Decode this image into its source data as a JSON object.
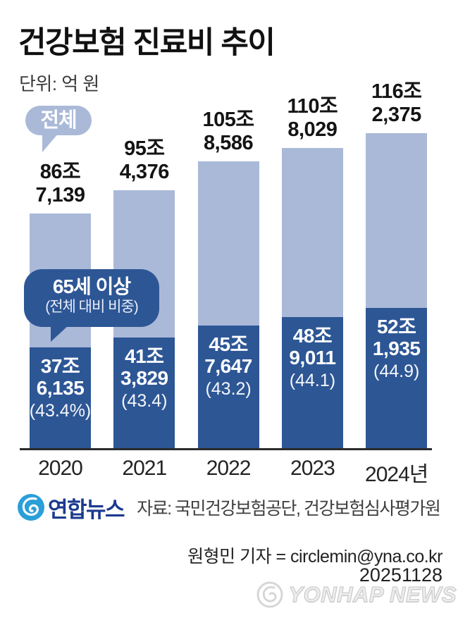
{
  "header": {
    "title": "건강보험 진료비 추이",
    "unit_label": "단위: 억 원"
  },
  "legend": {
    "total_badge": "전체",
    "senior_badge_line1": "65세 이상",
    "senior_badge_line2": "(전체 대비 비중)"
  },
  "chart_data": {
    "type": "bar",
    "stacked_overlay": true,
    "title": "건강보험 진료비 추이",
    "unit": "억 원",
    "categories": [
      "2020",
      "2021",
      "2022",
      "2023",
      "2024년"
    ],
    "series": [
      {
        "name": "전체",
        "values": [
          867139,
          954376,
          1058586,
          1108029,
          1162375
        ]
      },
      {
        "name": "65세 이상",
        "values": [
          376135,
          413829,
          457647,
          489011,
          521935
        ]
      }
    ],
    "senior_share_pct": [
      43.4,
      43.4,
      43.2,
      44.1,
      44.9
    ],
    "colors": {
      "total": "#aab9d8",
      "senior": "#2d5695"
    },
    "bars": [
      {
        "year": "2020",
        "total_value": 867139,
        "senior_value": 376135,
        "total_l1": "86조",
        "total_l2": "7,139",
        "senior_l1": "37조",
        "senior_l2": "6,135",
        "senior_l3": "(43.4%)"
      },
      {
        "year": "2021",
        "total_value": 954376,
        "senior_value": 413829,
        "total_l1": "95조",
        "total_l2": "4,376",
        "senior_l1": "41조",
        "senior_l2": "3,829",
        "senior_l3": "(43.4)"
      },
      {
        "year": "2022",
        "total_value": 1058586,
        "senior_value": 457647,
        "total_l1": "105조",
        "total_l2": "8,586",
        "senior_l1": "45조",
        "senior_l2": "7,647",
        "senior_l3": "(43.2)"
      },
      {
        "year": "2023",
        "total_value": 1108029,
        "senior_value": 489011,
        "total_l1": "110조",
        "total_l2": "8,029",
        "senior_l1": "48조",
        "senior_l2": "9,011",
        "senior_l3": "(44.1)"
      },
      {
        "year": "2024년",
        "total_value": 1162375,
        "senior_value": 521935,
        "total_l1": "116조",
        "total_l2": "2,375",
        "senior_l1": "52조",
        "senior_l2": "1,935",
        "senior_l3": "(44.9)"
      }
    ]
  },
  "footer": {
    "agency_name": "연합뉴스",
    "source": "자료: 국민건강보험공단, 건강보험심사평가원",
    "reporter": "원형민 기자 = circlemin@yna.co.kr",
    "date": "20251128",
    "watermark": "YONHAP NEWS"
  }
}
